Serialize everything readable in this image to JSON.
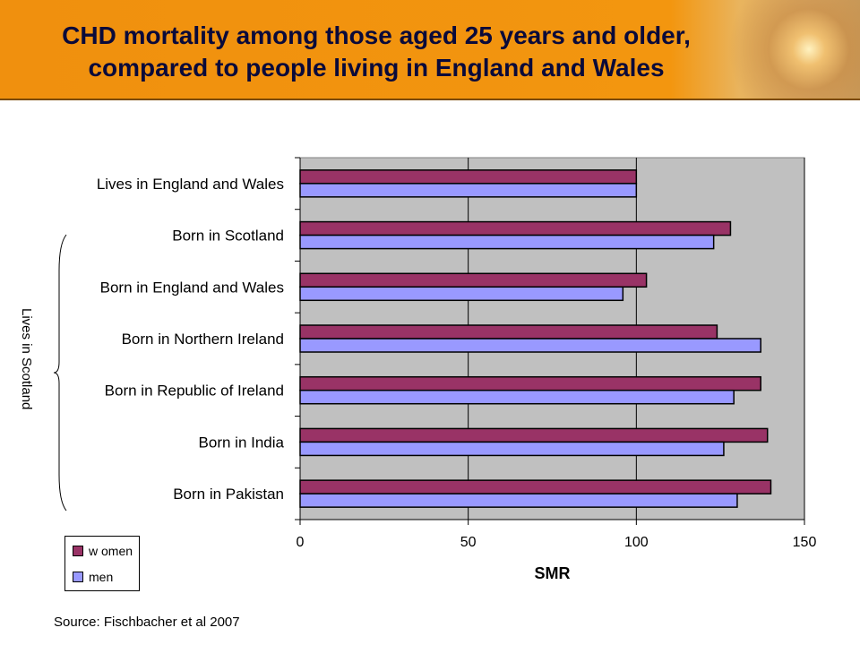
{
  "header": {
    "title_line1": "CHD mortality among those aged 25 years and older,",
    "title_line2": "compared to people living in England and Wales"
  },
  "chart_data": {
    "type": "bar",
    "orientation": "horizontal",
    "categories": [
      "Lives in England and Wales",
      "Born in Scotland",
      "Born in England and Wales",
      "Born in Northern Ireland",
      "Born in Republic of Ireland",
      "Born in India",
      "Born in Pakistan"
    ],
    "series": [
      {
        "name": "w omen",
        "color": "#993366",
        "values": [
          100,
          128,
          103,
          124,
          137,
          139,
          140
        ]
      },
      {
        "name": "men",
        "color": "#9999ff",
        "values": [
          100,
          123,
          96,
          137,
          129,
          126,
          130
        ]
      }
    ],
    "xlabel": "SMR",
    "xlim": [
      0,
      150
    ],
    "xticks": [
      0,
      50,
      100,
      150
    ],
    "group_label": "Lives in Scotland",
    "plot_background": "#c0c0c0",
    "legend_position": "bottom-left"
  },
  "footer": {
    "source": "Source: Fischbacher et al 2007"
  }
}
